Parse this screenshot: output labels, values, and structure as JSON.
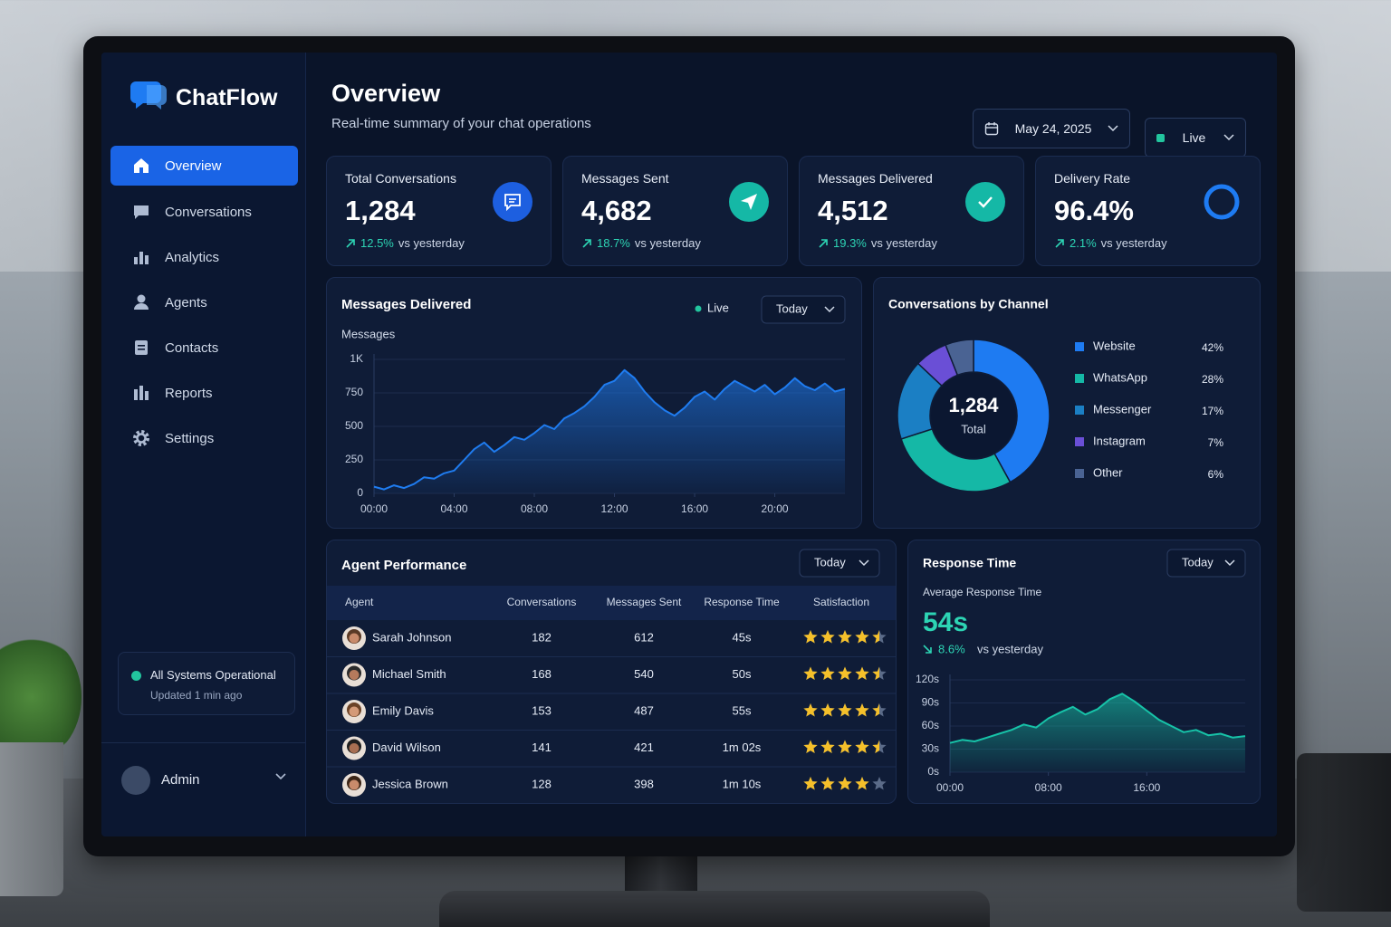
{
  "app": {
    "name": "ChatFlow"
  },
  "nav": [
    "Overview",
    "Conversations",
    "Analytics",
    "Agents",
    "Contacts",
    "Reports",
    "Settings"
  ],
  "status": {
    "title": "All Systems Operational",
    "updated": "Updated 1 min ago"
  },
  "user": "Admin",
  "header": {
    "title": "Overview",
    "subtitle": "Real-time summary of your chat operations",
    "date": "May 24, 2025",
    "mode": "Live"
  },
  "kpis": [
    {
      "label": "Total Conversations",
      "value": "1,284",
      "change": "12.5%",
      "note": "vs yesterday"
    },
    {
      "label": "Messages Sent",
      "value": "4,682",
      "change": "18.7%",
      "note": "vs yesterday"
    },
    {
      "label": "Messages Delivered",
      "value": "4,512",
      "change": "19.3%",
      "note": "vs yesterday"
    },
    {
      "label": "Delivery Rate",
      "value": "96.4%",
      "change": "2.1%",
      "note": "vs yesterday"
    }
  ],
  "messages_chart": {
    "type": "area",
    "title": "Messages Delivered",
    "status": "Live",
    "period": "Today",
    "y_label": "Messages",
    "color": "#1f7cf0",
    "x": [
      0,
      0.5,
      1,
      1.5,
      2,
      2.5,
      3,
      3.5,
      4,
      4.5,
      5,
      5.5,
      6,
      6.5,
      7,
      7.5,
      8,
      8.5,
      9,
      9.5,
      10,
      10.5,
      11,
      11.5,
      12,
      12.5,
      13,
      13.5,
      14,
      14.5,
      15,
      15.5,
      16,
      16.5,
      17,
      17.5,
      18,
      18.5,
      19,
      19.5,
      20,
      20.5,
      21,
      21.5,
      22,
      22.5,
      23,
      23.5
    ],
    "values": [
      50,
      30,
      60,
      40,
      70,
      120,
      110,
      150,
      170,
      250,
      330,
      380,
      310,
      360,
      420,
      400,
      450,
      510,
      480,
      560,
      600,
      650,
      720,
      810,
      840,
      920,
      860,
      760,
      680,
      620,
      580,
      640,
      720,
      760,
      700,
      780,
      840,
      800,
      760,
      810,
      740,
      790,
      860,
      800,
      770,
      820,
      760,
      780
    ],
    "xlim": [
      0,
      23.5
    ],
    "xticks": [
      {
        "value": 0,
        "label": "00:00"
      },
      {
        "value": 4,
        "label": "04:00"
      },
      {
        "value": 8,
        "label": "08:00"
      },
      {
        "value": 12,
        "label": "12:00"
      },
      {
        "value": 16,
        "label": "16:00"
      },
      {
        "value": 20,
        "label": "20:00"
      }
    ],
    "ylim": [
      0,
      1000
    ],
    "yticks": [
      0,
      250,
      500,
      750,
      {
        "value": 1000,
        "label": "1K"
      }
    ]
  },
  "channels": {
    "type": "pie",
    "title": "Conversations by Channel",
    "center_value": "1,284",
    "center_label": "Total",
    "categories": [
      "Website",
      "WhatsApp",
      "Messenger",
      "Instagram",
      "Other"
    ],
    "values": [
      42,
      28,
      17,
      7,
      6
    ],
    "value_labels": [
      "42%",
      "28%",
      "17%",
      "7%",
      "6%"
    ],
    "colors": [
      "#1e7bf2",
      "#15b8a6",
      "#1b7fc4",
      "#6a4fd6",
      "#4a6393"
    ]
  },
  "agents": {
    "title": "Agent Performance",
    "period": "Today",
    "columns": [
      "Agent",
      "Conversations",
      "Messages Sent",
      "Response Time",
      "Satisfaction"
    ],
    "rows": [
      [
        "Sarah Johnson",
        "182",
        "612",
        "45s"
      ],
      [
        "Michael Smith",
        "168",
        "540",
        "50s"
      ],
      [
        "Emily Davis",
        "153",
        "487",
        "55s"
      ],
      [
        "David Wilson",
        "141",
        "421",
        "1m 02s"
      ],
      [
        "Jessica Brown",
        "128",
        "398",
        "1m 10s"
      ]
    ],
    "satisfaction": [
      4.5,
      4.5,
      4.5,
      4.5,
      4
    ]
  },
  "response": {
    "type": "area",
    "title": "Response Time",
    "period": "Today",
    "metric_label": "Average Response Time",
    "metric": "54s",
    "change": "8.6%",
    "note": "vs yesterday",
    "color": "#17c3a8",
    "x": [
      0,
      1,
      2,
      3,
      4,
      5,
      6,
      7,
      8,
      9,
      10,
      11,
      12,
      13,
      14,
      15,
      16,
      17,
      18,
      19,
      20,
      21,
      22,
      23,
      24
    ],
    "values": [
      38,
      42,
      40,
      45,
      50,
      55,
      62,
      58,
      70,
      78,
      85,
      75,
      82,
      95,
      102,
      92,
      80,
      68,
      60,
      52,
      55,
      48,
      50,
      45,
      47
    ],
    "xlim": [
      0,
      24
    ],
    "xticks": [
      {
        "value": 0,
        "label": "00:00"
      },
      {
        "value": 8,
        "label": "08:00"
      },
      {
        "value": 16,
        "label": "16:00"
      }
    ],
    "ylim": [
      0,
      120
    ],
    "yticks": [
      {
        "value": 0,
        "label": "0s"
      },
      {
        "value": 30,
        "label": "30s"
      },
      {
        "value": 60,
        "label": "60s"
      },
      {
        "value": 90,
        "label": "90s"
      },
      {
        "value": 120,
        "label": "120s"
      }
    ]
  }
}
